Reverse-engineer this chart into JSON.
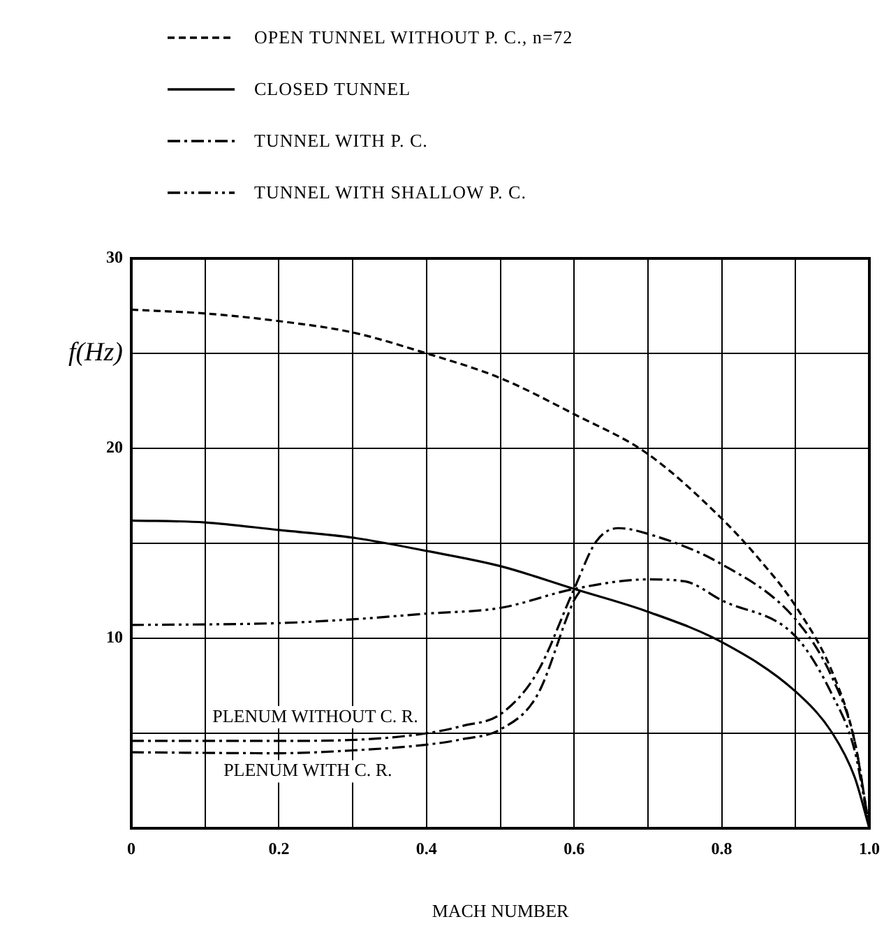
{
  "chart_data": {
    "type": "line",
    "xlabel": "MACH NUMBER",
    "ylabel": "f(Hz)",
    "xlim": [
      0,
      1
    ],
    "ylim": [
      0,
      30
    ],
    "xticks": [
      0,
      {
        "value": 0.1,
        "label": null
      },
      0.2,
      {
        "value": 0.3,
        "label": null
      },
      0.4,
      {
        "value": 0.5,
        "label": null
      },
      0.6,
      {
        "value": 0.7,
        "label": null
      },
      0.8,
      {
        "value": 0.9,
        "label": null
      },
      {
        "value": 1,
        "label": "1.0"
      }
    ],
    "yticks": [
      {
        "value": 5,
        "label": null
      },
      10,
      {
        "value": 15,
        "label": null
      },
      20,
      {
        "value": 25,
        "label": null
      },
      30
    ],
    "grid": true,
    "legend": "top",
    "marker": "none",
    "series": [
      {
        "name": "OPEN TUNNEL WITHOUT P. C., n=72",
        "color": "#000000",
        "line_style": "dashed",
        "x": [
          0,
          0.1,
          0.2,
          0.3,
          0.4,
          0.5,
          0.6,
          0.7,
          0.8,
          0.85,
          0.9,
          0.95,
          0.98,
          1
        ],
        "values": [
          27.3,
          27.1,
          26.7,
          26.1,
          25.0,
          23.7,
          21.8,
          19.7,
          16.3,
          14.2,
          11.7,
          8.2,
          4.6,
          0
        ]
      },
      {
        "name": "CLOSED TUNNEL",
        "color": "#000000",
        "line_style": "solid",
        "x": [
          0,
          0.1,
          0.2,
          0.3,
          0.4,
          0.5,
          0.6,
          0.7,
          0.8,
          0.9,
          0.95,
          0.98,
          1
        ],
        "values": [
          16.2,
          16.1,
          15.7,
          15.3,
          14.6,
          13.8,
          12.6,
          11.4,
          9.8,
          7.2,
          5.0,
          2.7,
          0
        ]
      },
      {
        "name": "TUNNEL WITH P. C.",
        "color": "#000000",
        "line_style": "dashdot",
        "x": [
          0,
          0.2,
          0.3,
          0.4,
          0.45,
          0.5,
          0.55,
          0.6,
          0.63,
          0.66,
          0.7,
          0.8,
          0.9,
          0.95,
          0.98,
          1
        ],
        "values": [
          4.6,
          4.6,
          4.65,
          5.0,
          5.4,
          6.0,
          8.2,
          12.6,
          15.1,
          15.8,
          15.5,
          13.9,
          11.0,
          7.9,
          4.6,
          0
        ]
      },
      {
        "color": "#000000",
        "line_style": "dashdot",
        "x": [
          0,
          0.2,
          0.3,
          0.4,
          0.45,
          0.5,
          0.55,
          0.6,
          0.61
        ],
        "values": [
          4.0,
          3.95,
          4.1,
          4.4,
          4.7,
          5.2,
          7.0,
          12.0,
          12.6
        ]
      },
      {
        "name": "TUNNEL WITH SHALLOW P. C.",
        "color": "#000000",
        "line_style": "dashdotdot",
        "x": [
          0,
          0.2,
          0.3,
          0.4,
          0.5,
          0.6,
          0.7,
          0.75,
          0.8,
          0.9,
          0.95,
          0.98,
          1
        ],
        "values": [
          10.7,
          10.8,
          11.0,
          11.3,
          11.6,
          12.6,
          13.1,
          13.0,
          12.0,
          10.1,
          7.0,
          4.1,
          0
        ]
      }
    ],
    "annotations": [
      "PLENUM WITHOUT C. R.",
      "PLENUM WITH C. R."
    ]
  }
}
